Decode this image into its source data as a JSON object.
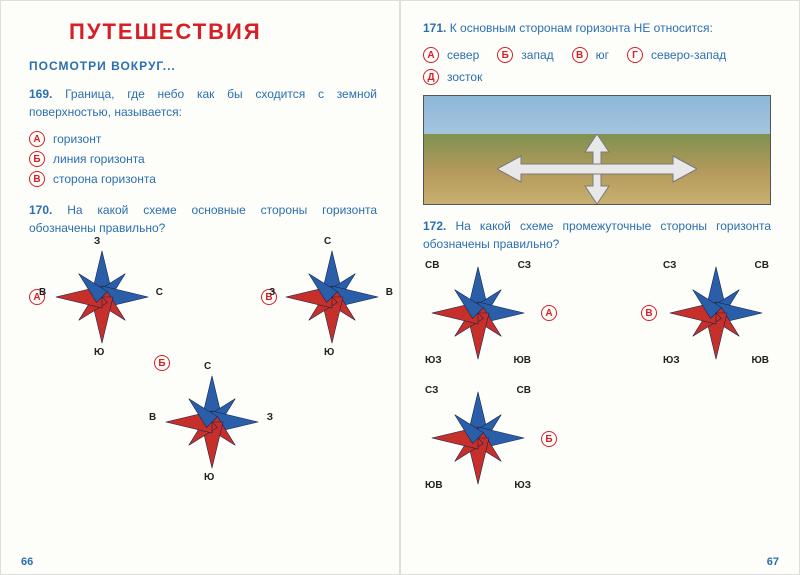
{
  "colors": {
    "red": "#d61f26",
    "blue_text": "#2b6fb0",
    "compass_blue": "#2b5ea8",
    "compass_red": "#c62f2a",
    "arrow_fill": "#e8e8e8",
    "arrow_stroke": "#888"
  },
  "left": {
    "title": "ПУТЕШЕСТВИЯ",
    "subtitle": "ПОСМОТРИ  ВОКРУГ...",
    "q169": {
      "num": "169.",
      "text": "Граница, где небо как бы сходится с земной поверхностью, называется:",
      "options": [
        {
          "letter": "А",
          "text": "горизонт"
        },
        {
          "letter": "Б",
          "text": "линия горизонта"
        },
        {
          "letter": "В",
          "text": "сторона горизонта"
        }
      ]
    },
    "q170": {
      "num": "170.",
      "text": "На какой схеме основные стороны горизонта обозначены правильно?",
      "opts": {
        "a": "А",
        "b": "Б",
        "c": "В"
      },
      "compass1": {
        "top": "З",
        "right": "С",
        "bottom": "Ю",
        "left": "В"
      },
      "compass2": {
        "top": "С",
        "right": "З",
        "bottom": "Ю",
        "left": "В"
      },
      "compass3": {
        "top": "С",
        "right": "В",
        "bottom": "Ю",
        "left": "З"
      }
    },
    "pagenum": "66"
  },
  "right": {
    "q171": {
      "num": "171.",
      "text": "К основным сторонам горизонта НЕ относится:",
      "options": [
        {
          "letter": "А",
          "text": "север"
        },
        {
          "letter": "Б",
          "text": "запад"
        },
        {
          "letter": "В",
          "text": "юг"
        },
        {
          "letter": "Г",
          "text": "северо-запад"
        },
        {
          "letter": "Д",
          "text": "зосток"
        }
      ]
    },
    "q172": {
      "num": "172.",
      "text": "На какой схеме промежуточные стороны горизонта обозначены правильно?",
      "opts": {
        "a": "А",
        "b": "Б",
        "c": "В"
      },
      "compass1": {
        "tl": "СВ",
        "tr": "СЗ",
        "bl": "ЮЗ",
        "br": "ЮВ"
      },
      "compass2": {
        "tl": "СЗ",
        "tr": "СВ",
        "bl": "ЮВ",
        "br": "ЮЗ"
      },
      "compass3": {
        "tl": "СЗ",
        "tr": "СВ",
        "bl": "ЮЗ",
        "br": "ЮВ"
      }
    },
    "pagenum": "67"
  }
}
